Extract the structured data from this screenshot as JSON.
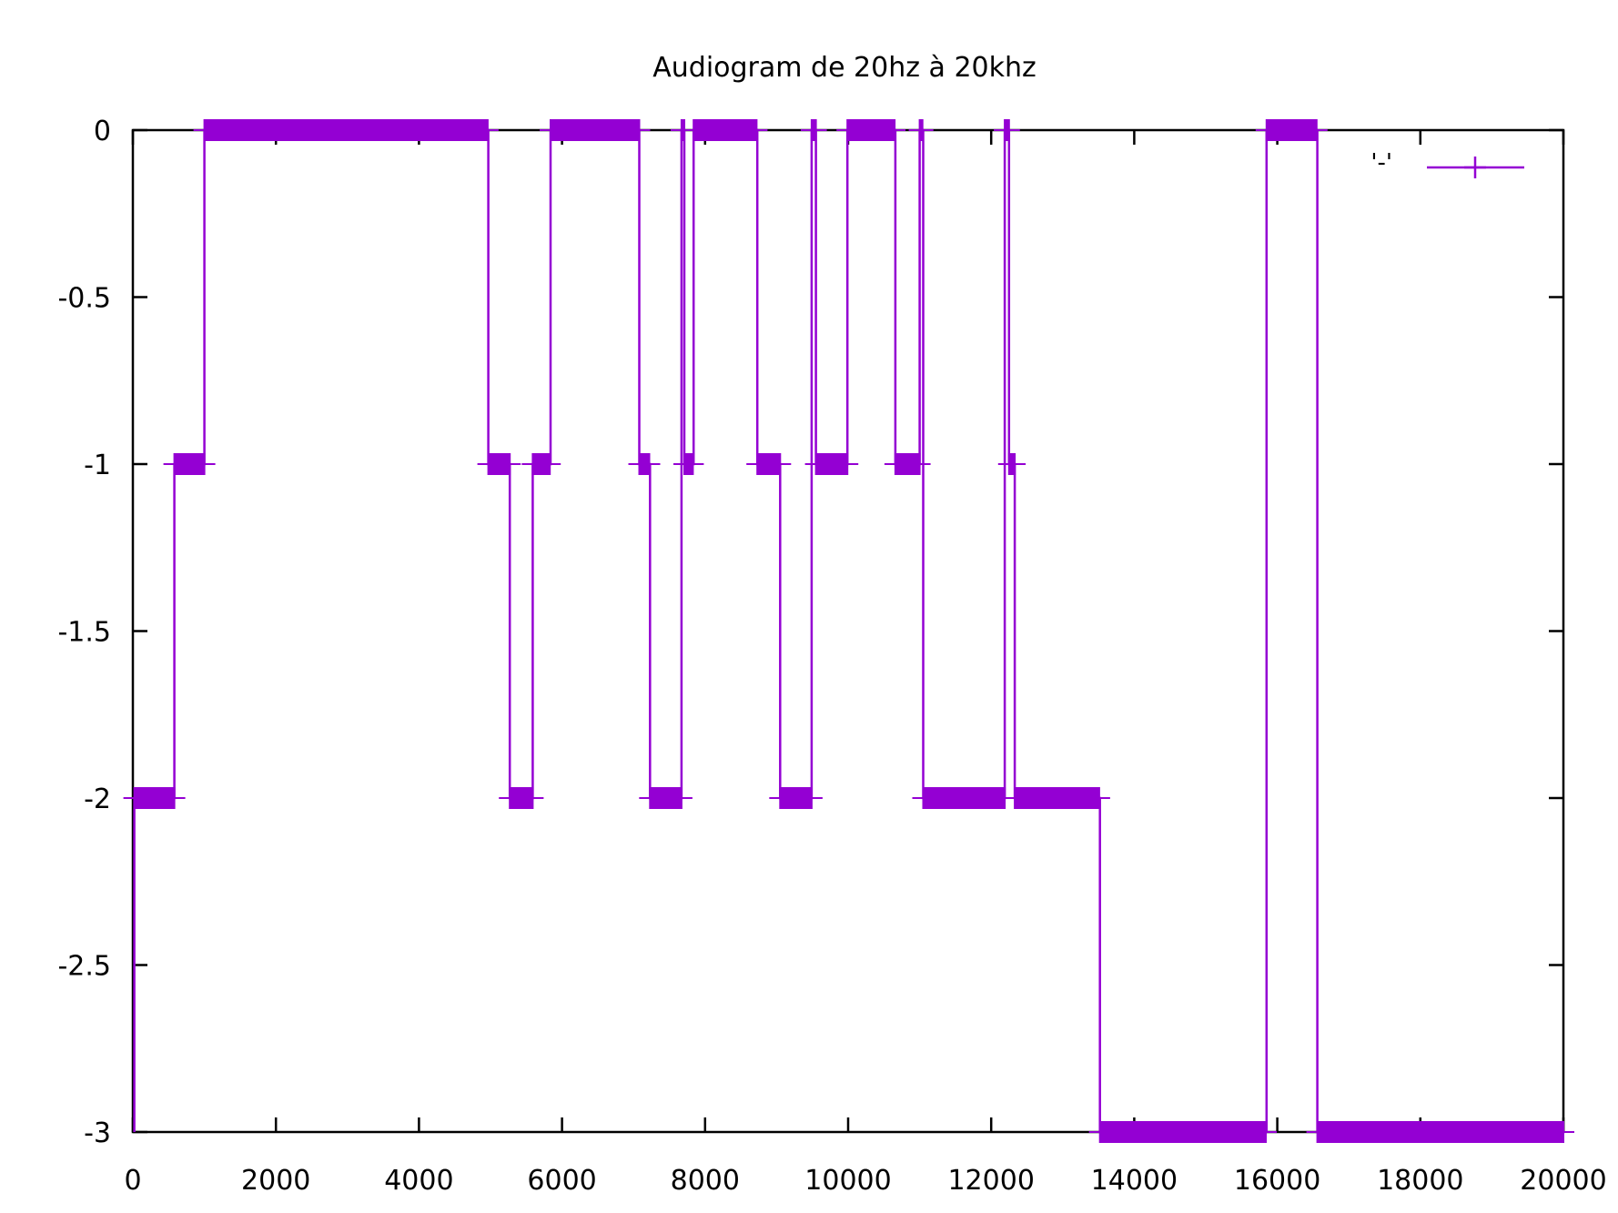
{
  "chart_data": {
    "type": "line",
    "title": "Audiogram de 20hz à 20khz",
    "xlabel": "",
    "ylabel": "",
    "xlim": [
      0,
      20000
    ],
    "ylim": [
      -3,
      0
    ],
    "xticks": [
      "0",
      "2000",
      "4000",
      "6000",
      "8000",
      "10000",
      "12000",
      "14000",
      "16000",
      "18000",
      "20000"
    ],
    "yticks": [
      "0",
      "-0.5",
      "-1",
      "-1.5",
      "-2",
      "-2.5",
      "-3"
    ],
    "grid": false,
    "legend_position": "top-right",
    "series": [
      {
        "name": "'-'",
        "color": "#9400d3",
        "marker": "plus",
        "segments": [
          {
            "x0": 20,
            "x1": 580,
            "y": -2
          },
          {
            "x0": 580,
            "x1": 1000,
            "y": -1
          },
          {
            "x0": 1000,
            "x1": 4970,
            "y": 0
          },
          {
            "x0": 4970,
            "x1": 5270,
            "y": -1
          },
          {
            "x0": 5270,
            "x1": 5590,
            "y": -2
          },
          {
            "x0": 5590,
            "x1": 5840,
            "y": -1
          },
          {
            "x0": 5840,
            "x1": 7080,
            "y": 0
          },
          {
            "x0": 7080,
            "x1": 7230,
            "y": -1
          },
          {
            "x0": 7230,
            "x1": 7670,
            "y": -2
          },
          {
            "x0": 7670,
            "x1": 7710,
            "y": 0
          },
          {
            "x0": 7710,
            "x1": 7840,
            "y": -1
          },
          {
            "x0": 7840,
            "x1": 8730,
            "y": 0
          },
          {
            "x0": 8730,
            "x1": 9050,
            "y": -1
          },
          {
            "x0": 9050,
            "x1": 9490,
            "y": -2
          },
          {
            "x0": 9490,
            "x1": 9550,
            "y": 0
          },
          {
            "x0": 9550,
            "x1": 9990,
            "y": -1
          },
          {
            "x0": 9990,
            "x1": 10660,
            "y": 0
          },
          {
            "x0": 10660,
            "x1": 11000,
            "y": -1
          },
          {
            "x0": 11000,
            "x1": 11050,
            "y": 0
          },
          {
            "x0": 11050,
            "x1": 12190,
            "y": -2
          },
          {
            "x0": 12190,
            "x1": 12250,
            "y": 0
          },
          {
            "x0": 12250,
            "x1": 12330,
            "y": -1
          },
          {
            "x0": 12330,
            "x1": 13520,
            "y": -2
          },
          {
            "x0": 13520,
            "x1": 15850,
            "y": -3
          },
          {
            "x0": 15850,
            "x1": 16560,
            "y": 0
          },
          {
            "x0": 16560,
            "x1": 20000,
            "y": -3
          }
        ]
      }
    ]
  }
}
